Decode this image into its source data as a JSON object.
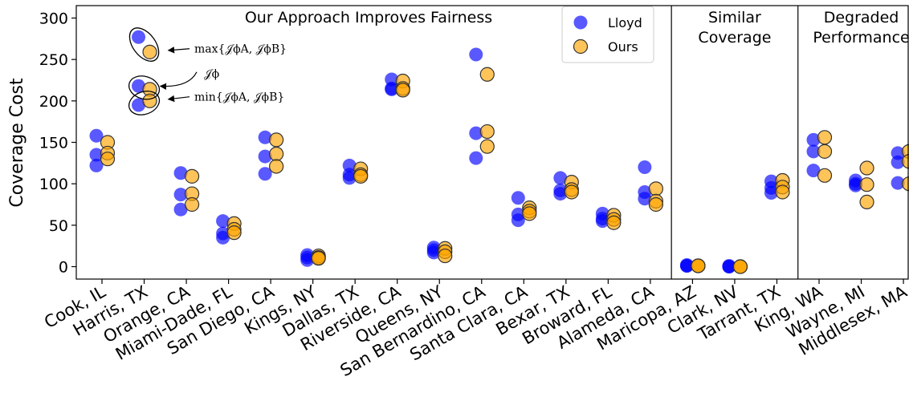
{
  "colors": {
    "lloyd": "#0000ff",
    "ours": "#ffa500",
    "ours_edge": "#333333",
    "axis": "#000000"
  },
  "chart_data": {
    "type": "scatter",
    "ylabel": "Coverage Cost",
    "ylim": [
      -15,
      315
    ],
    "yticks": [
      0,
      50,
      100,
      150,
      200,
      250,
      300
    ],
    "grid": false,
    "legend_position": "top-right of first panel",
    "legend": [
      {
        "name": "Lloyd",
        "color": "#0000ff"
      },
      {
        "name": "Ours",
        "color": "#ffa500"
      }
    ],
    "sections": [
      {
        "title_lines": [
          "Our Approach Improves Fairness"
        ],
        "from": 0,
        "to": 13
      },
      {
        "title_lines": [
          "Similar",
          "Coverage"
        ],
        "from": 14,
        "to": 16
      },
      {
        "title_lines": [
          "Degraded",
          "Performance"
        ],
        "from": 17,
        "to": 19
      }
    ],
    "categories": [
      "Cook, IL",
      "Harris, TX",
      "Orange, CA",
      "Miami-Dade, FL",
      "San Diego, CA",
      "Kings, NY",
      "Dallas, TX",
      "Riverside, CA",
      "Queens, NY",
      "San Bernardino, CA",
      "Santa Clara, CA",
      "Bexar, TX",
      "Broward, FL",
      "Alameda, CA",
      "Maricopa, AZ",
      "Clark, NV",
      "Tarrant, TX",
      "King, WA",
      "Wayne, MI",
      "Middlesex, MA"
    ],
    "series": [
      {
        "name": "Lloyd",
        "values": [
          [
            158,
            135,
            122
          ],
          [
            277,
            218,
            195
          ],
          [
            113,
            87,
            69
          ],
          [
            55,
            40,
            35
          ],
          [
            156,
            133,
            112
          ],
          [
            14,
            11,
            8
          ],
          [
            122,
            111,
            107
          ],
          [
            226,
            215,
            214
          ],
          [
            23,
            20,
            17
          ],
          [
            256,
            161,
            131
          ],
          [
            83,
            63,
            56
          ],
          [
            107,
            92,
            88
          ],
          [
            64,
            58,
            55
          ],
          [
            120,
            90,
            82
          ],
          [
            2,
            1,
            1
          ],
          [
            1,
            0,
            0
          ],
          [
            103,
            95,
            89
          ],
          [
            153,
            139,
            116
          ],
          [
            104,
            100,
            98
          ],
          [
            137,
            126,
            101
          ]
        ]
      },
      {
        "name": "Ours",
        "values": [
          [
            150,
            137,
            130
          ],
          [
            259,
            214,
            200
          ],
          [
            109,
            88,
            75
          ],
          [
            52,
            45,
            41
          ],
          [
            153,
            136,
            121
          ],
          [
            13,
            11,
            10
          ],
          [
            118,
            111,
            109
          ],
          [
            224,
            215,
            213
          ],
          [
            22,
            18,
            13
          ],
          [
            232,
            163,
            145
          ],
          [
            71,
            67,
            64
          ],
          [
            102,
            93,
            90
          ],
          [
            62,
            57,
            53
          ],
          [
            94,
            79,
            75
          ],
          [
            1,
            1,
            1
          ],
          [
            0,
            0,
            0
          ],
          [
            104,
            96,
            90
          ],
          [
            156,
            139,
            110
          ],
          [
            119,
            99,
            78
          ],
          [
            139,
            127,
            100
          ]
        ]
      }
    ],
    "annotations": [
      {
        "label": "max{𝒥ϕA, 𝒥ϕB}",
        "pair": "max",
        "text_x": 23.6,
        "text_y": 263
      },
      {
        "label": "𝒥ϕ",
        "pair": "mid",
        "text_x": 23.6,
        "text_y": 233
      },
      {
        "label": "min{𝒥ϕA, 𝒥ϕB}",
        "pair": "min",
        "text_x": 23.6,
        "text_y": 205
      }
    ]
  }
}
